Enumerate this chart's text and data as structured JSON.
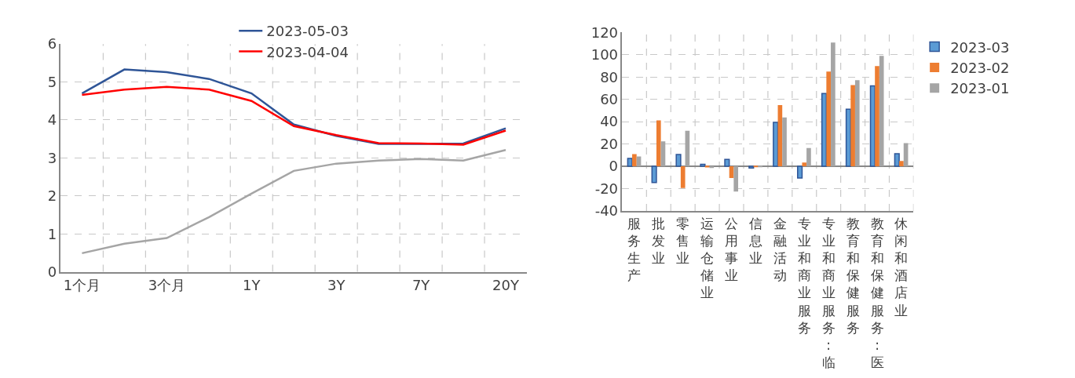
{
  "chart_data": [
    {
      "type": "line",
      "categories": [
        "1个月",
        null,
        "3个月",
        null,
        "1Y",
        null,
        "3Y",
        null,
        "7Y",
        null,
        "20Y"
      ],
      "series": [
        {
          "name": "2023-05-03",
          "color": "#2f5597",
          "values": [
            4.7,
            5.33,
            5.26,
            5.08,
            4.7,
            3.88,
            3.58,
            3.37,
            3.37,
            3.38,
            3.78
          ]
        },
        {
          "name": "2023-04-04",
          "color": "#ff0000",
          "values": [
            4.66,
            4.8,
            4.87,
            4.8,
            4.5,
            3.84,
            3.6,
            3.39,
            3.38,
            3.35,
            3.72
          ]
        },
        {
          "color": "#a5a5a5",
          "values": [
            0.49,
            0.74,
            0.89,
            1.44,
            2.06,
            2.66,
            2.85,
            2.93,
            2.97,
            2.93,
            3.21
          ]
        }
      ],
      "ylim": [
        0,
        6
      ],
      "yticks": [
        0,
        1,
        2,
        3,
        4,
        5,
        6
      ],
      "grid": true,
      "legend": "top",
      "marker": "none",
      "line_style": "solid"
    },
    {
      "type": "bar",
      "categories": [
        "服务生产",
        "批发业",
        "零售业",
        "运输仓储业",
        "公用事业",
        "信息业",
        "金融活动",
        "专业和商业服务",
        "专业和商业服务:临",
        "教育和保健服务",
        "教育和保健服务:医",
        "休闲和酒店业"
      ],
      "series": [
        {
          "name": "2023-03",
          "color": "#5b9bd5",
          "values": [
            7,
            -14.6,
            10.6,
            1.8,
            6.2,
            -1.5,
            39.3,
            -10.5,
            65.3,
            51.1,
            72.1,
            11.2
          ]
        },
        {
          "name": "2023-02",
          "color": "#ed7d31",
          "values": [
            10.9,
            41.2,
            -19.5,
            -1,
            -10.5,
            -0.5,
            54.9,
            3.3,
            85,
            72.8,
            89.9,
            4.7
          ]
        },
        {
          "name": "2023-01",
          "color": "#a5a5a5",
          "values": [
            8.8,
            22.3,
            31.8,
            -1.5,
            -22.6,
            -0.5,
            43.8,
            16.4,
            111,
            77.2,
            98.9,
            20.7
          ]
        }
      ],
      "ylim": [
        -40,
        120
      ],
      "yticks": [
        -40,
        -20,
        0,
        20,
        40,
        60,
        80,
        100,
        120
      ],
      "grid": true,
      "legend": "top right"
    }
  ]
}
